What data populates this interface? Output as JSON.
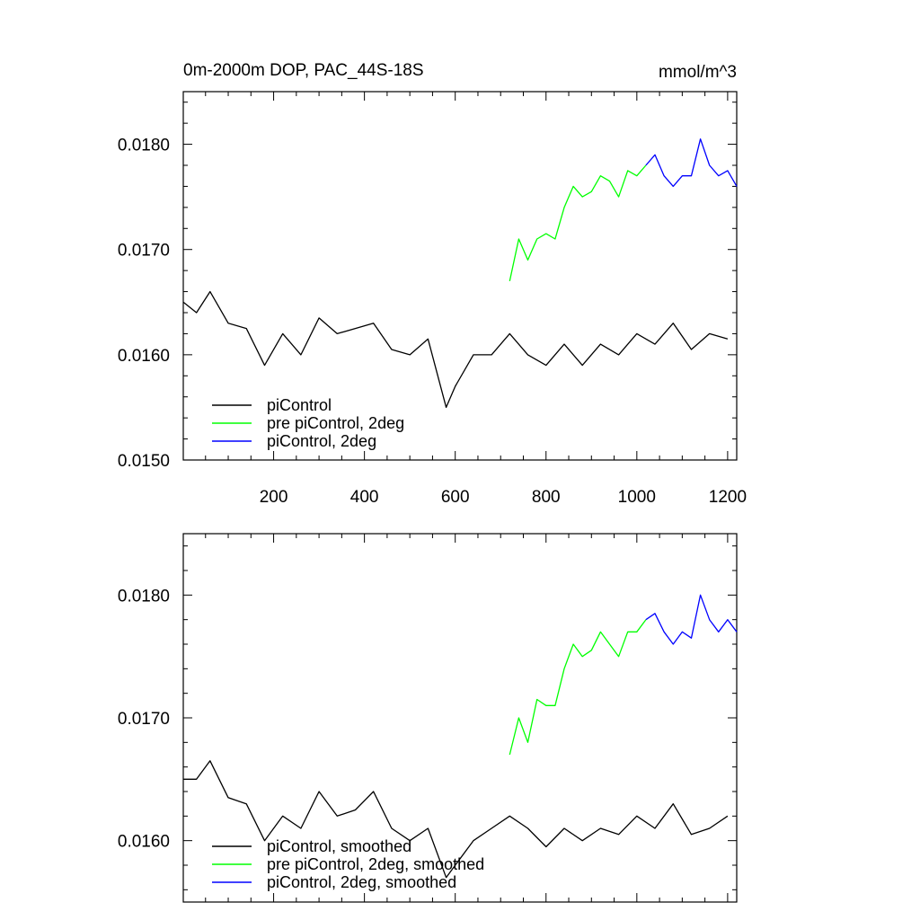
{
  "chart_data": [
    {
      "type": "line",
      "title": "0m-2000m DOP, PAC_44S-18S",
      "units": "mmol/m^3",
      "xlim": [
        1,
        1220
      ],
      "ylim": [
        0.015,
        0.0185
      ],
      "x_ticks": [
        200,
        400,
        600,
        800,
        1000,
        1200
      ],
      "x_tick_labels": [
        "200",
        "400",
        "600",
        "800",
        "1000",
        "1200"
      ],
      "y_ticks": [
        0.015,
        0.016,
        0.017,
        0.018
      ],
      "y_tick_labels": [
        "0.0150",
        "0.0160",
        "0.0170",
        "0.0180"
      ],
      "legend_position": "bottom-left",
      "series": [
        {
          "name": "piControl",
          "color": "#000000",
          "x": [
            1,
            30,
            60,
            100,
            140,
            180,
            220,
            260,
            300,
            340,
            380,
            420,
            460,
            500,
            540,
            580,
            600,
            640,
            680,
            720,
            760,
            800,
            840,
            880,
            920,
            960,
            1000,
            1040,
            1080,
            1120,
            1160,
            1200
          ],
          "y": [
            0.0165,
            0.0164,
            0.0166,
            0.0163,
            0.01625,
            0.0159,
            0.0162,
            0.016,
            0.01635,
            0.0162,
            0.01625,
            0.0163,
            0.01605,
            0.016,
            0.01615,
            0.0155,
            0.0157,
            0.016,
            0.016,
            0.0162,
            0.016,
            0.0159,
            0.0161,
            0.0159,
            0.0161,
            0.016,
            0.0162,
            0.0161,
            0.0163,
            0.01605,
            0.0162,
            0.01615
          ]
        },
        {
          "name": "pre piControl, 2deg",
          "color": "#00ff00",
          "x": [
            720,
            740,
            760,
            780,
            800,
            820,
            840,
            860,
            880,
            900,
            920,
            940,
            960,
            980,
            1000,
            1020
          ],
          "y": [
            0.0167,
            0.0171,
            0.0169,
            0.0171,
            0.01715,
            0.0171,
            0.0174,
            0.0176,
            0.0175,
            0.01755,
            0.0177,
            0.01765,
            0.0175,
            0.01775,
            0.0177,
            0.0178
          ]
        },
        {
          "name": "piControl, 2deg",
          "color": "#0000ff",
          "x": [
            1020,
            1040,
            1060,
            1080,
            1100,
            1120,
            1140,
            1160,
            1180,
            1200,
            1220
          ],
          "y": [
            0.0178,
            0.0179,
            0.0177,
            0.0176,
            0.0177,
            0.0177,
            0.01805,
            0.0178,
            0.0177,
            0.01775,
            0.0176
          ]
        }
      ]
    },
    {
      "type": "line",
      "title": "",
      "xlim": [
        1,
        1220
      ],
      "ylim": [
        0.0155,
        0.0185
      ],
      "y_ticks": [
        0.016,
        0.017,
        0.018
      ],
      "y_tick_labels": [
        "0.0160",
        "0.0170",
        "0.0180"
      ],
      "legend_position": "bottom-left",
      "series": [
        {
          "name": "piControl, smoothed",
          "color": "#000000",
          "x": [
            1,
            30,
            60,
            100,
            140,
            180,
            220,
            260,
            300,
            340,
            380,
            420,
            460,
            500,
            540,
            580,
            600,
            640,
            680,
            720,
            760,
            800,
            840,
            880,
            920,
            960,
            1000,
            1040,
            1080,
            1120,
            1160,
            1200
          ],
          "y": [
            0.0165,
            0.0165,
            0.01665,
            0.01635,
            0.0163,
            0.016,
            0.0162,
            0.0161,
            0.0164,
            0.0162,
            0.01625,
            0.0164,
            0.0161,
            0.016,
            0.0161,
            0.0157,
            0.0158,
            0.016,
            0.0161,
            0.0162,
            0.0161,
            0.01595,
            0.0161,
            0.016,
            0.0161,
            0.01605,
            0.0162,
            0.0161,
            0.0163,
            0.01605,
            0.0161,
            0.0162
          ]
        },
        {
          "name": "pre piControl, 2deg, smoothed",
          "color": "#00ff00",
          "x": [
            720,
            740,
            760,
            780,
            800,
            820,
            840,
            860,
            880,
            900,
            920,
            940,
            960,
            980,
            1000,
            1020
          ],
          "y": [
            0.0167,
            0.017,
            0.0168,
            0.01715,
            0.0171,
            0.0171,
            0.0174,
            0.0176,
            0.0175,
            0.01755,
            0.0177,
            0.0176,
            0.0175,
            0.0177,
            0.0177,
            0.0178
          ]
        },
        {
          "name": "piControl, 2deg, smoothed",
          "color": "#0000ff",
          "x": [
            1020,
            1040,
            1060,
            1080,
            1100,
            1120,
            1140,
            1160,
            1180,
            1200,
            1220
          ],
          "y": [
            0.0178,
            0.01785,
            0.0177,
            0.0176,
            0.0177,
            0.01765,
            0.018,
            0.0178,
            0.0177,
            0.0178,
            0.0177
          ]
        }
      ]
    }
  ]
}
